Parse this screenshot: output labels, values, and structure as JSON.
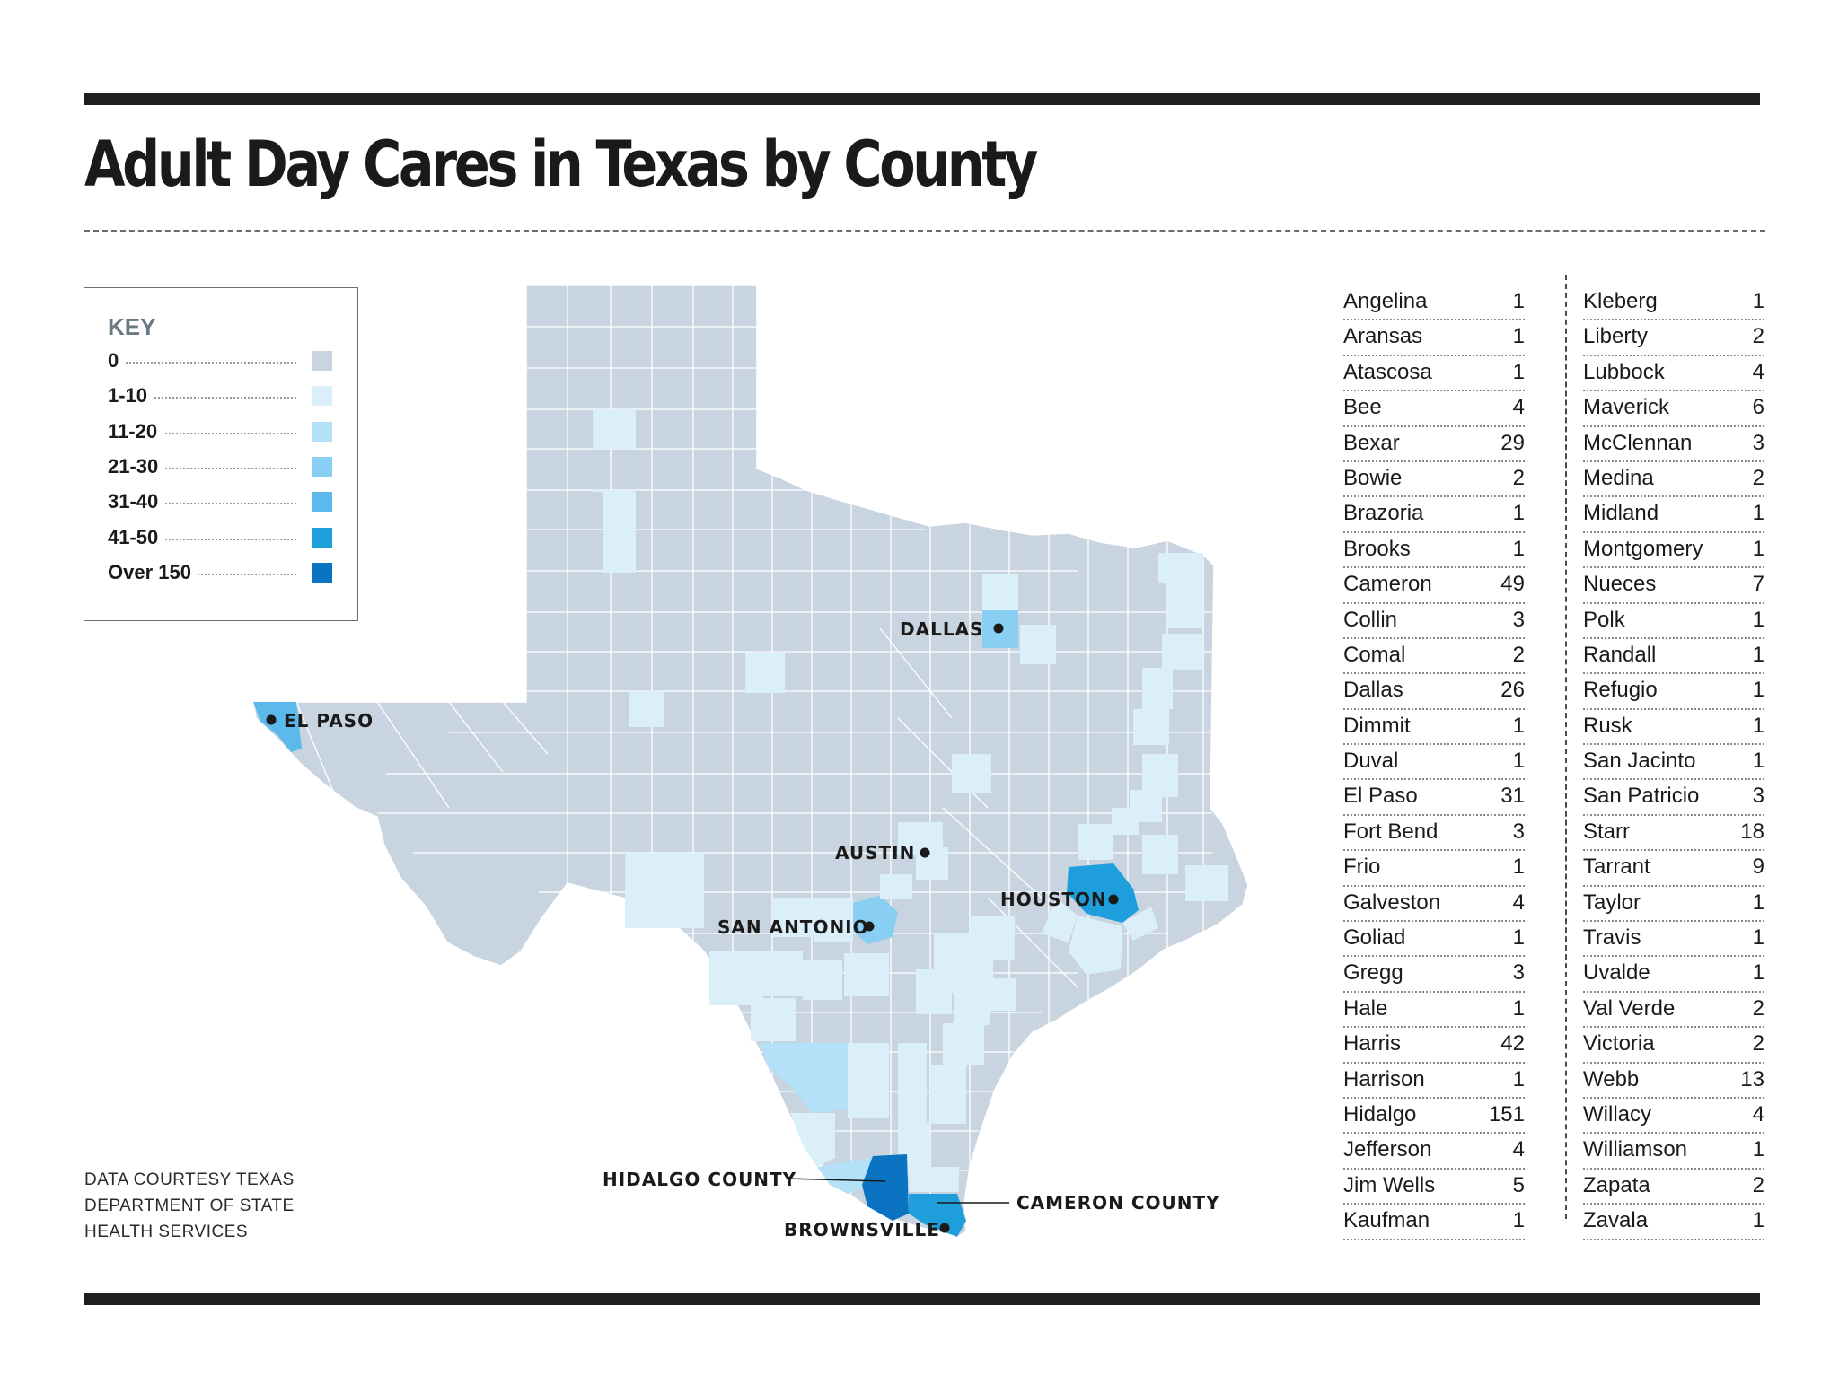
{
  "title": "Adult Day Cares in Texas by County",
  "key": {
    "heading": "KEY",
    "items": [
      {
        "label": "0",
        "color": "#c8d4df"
      },
      {
        "label": "1-10",
        "color": "#dbeffb"
      },
      {
        "label": "11-20",
        "color": "#b4e1f7"
      },
      {
        "label": "21-30",
        "color": "#88cff3"
      },
      {
        "label": "31-40",
        "color": "#5cb9eb"
      },
      {
        "label": "41-50",
        "color": "#1e9fdc"
      },
      {
        "label": "Over 150",
        "color": "#0a74c2"
      }
    ]
  },
  "map_labels": {
    "dallas": "DALLAS",
    "el_paso": "EL PASO",
    "austin": "AUSTIN",
    "houston": "HOUSTON",
    "san_antonio": "SAN ANTONIO",
    "hidalgo_county": "HIDALGO COUNTY",
    "cameron_county": "CAMERON COUNTY",
    "brownsville": "BROWNSVILLE"
  },
  "source": [
    "DATA COURTESY TEXAS",
    "DEPARTMENT OF STATE",
    "HEALTH SERVICES"
  ],
  "counties_col1": [
    {
      "name": "Angelina",
      "count": "1"
    },
    {
      "name": "Aransas",
      "count": "1"
    },
    {
      "name": "Atascosa",
      "count": "1"
    },
    {
      "name": "Bee",
      "count": "4"
    },
    {
      "name": "Bexar",
      "count": "29"
    },
    {
      "name": "Bowie",
      "count": "2"
    },
    {
      "name": "Brazoria",
      "count": "1"
    },
    {
      "name": "Brooks",
      "count": "1"
    },
    {
      "name": "Cameron",
      "count": "49"
    },
    {
      "name": "Collin",
      "count": "3"
    },
    {
      "name": "Comal",
      "count": "2"
    },
    {
      "name": "Dallas",
      "count": "26"
    },
    {
      "name": "Dimmit",
      "count": "1"
    },
    {
      "name": "Duval",
      "count": "1"
    },
    {
      "name": "El Paso",
      "count": "31"
    },
    {
      "name": "Fort Bend",
      "count": "3"
    },
    {
      "name": "Frio",
      "count": "1"
    },
    {
      "name": "Galveston",
      "count": "4"
    },
    {
      "name": "Goliad",
      "count": "1"
    },
    {
      "name": "Gregg",
      "count": "3"
    },
    {
      "name": "Hale",
      "count": "1"
    },
    {
      "name": "Harris",
      "count": "42"
    },
    {
      "name": "Harrison",
      "count": "1"
    },
    {
      "name": "Hidalgo",
      "count": "151"
    },
    {
      "name": "Jefferson",
      "count": "4"
    },
    {
      "name": "Jim Wells",
      "count": "5"
    },
    {
      "name": "Kaufman",
      "count": "1"
    }
  ],
  "counties_col2": [
    {
      "name": "Kleberg",
      "count": "1"
    },
    {
      "name": "Liberty",
      "count": "2"
    },
    {
      "name": "Lubbock",
      "count": "4"
    },
    {
      "name": "Maverick",
      "count": "6"
    },
    {
      "name": "McClennan",
      "count": "3"
    },
    {
      "name": "Medina",
      "count": "2"
    },
    {
      "name": "Midland",
      "count": "1"
    },
    {
      "name": "Montgomery",
      "count": "1"
    },
    {
      "name": "Nueces",
      "count": "7"
    },
    {
      "name": "Polk",
      "count": "1"
    },
    {
      "name": "Randall",
      "count": "1"
    },
    {
      "name": "Refugio",
      "count": "1"
    },
    {
      "name": "Rusk",
      "count": "1"
    },
    {
      "name": "San Jacinto",
      "count": "1"
    },
    {
      "name": "San Patricio",
      "count": "3"
    },
    {
      "name": "Starr",
      "count": "18"
    },
    {
      "name": "Tarrant",
      "count": "9"
    },
    {
      "name": "Taylor",
      "count": "1"
    },
    {
      "name": "Travis",
      "count": "1"
    },
    {
      "name": "Uvalde",
      "count": "1"
    },
    {
      "name": "Val Verde",
      "count": "2"
    },
    {
      "name": "Victoria",
      "count": "2"
    },
    {
      "name": "Webb",
      "count": "13"
    },
    {
      "name": "Willacy",
      "count": "4"
    },
    {
      "name": "Williamson",
      "count": "1"
    },
    {
      "name": "Zapata",
      "count": "2"
    },
    {
      "name": "Zavala",
      "count": "1"
    }
  ]
}
